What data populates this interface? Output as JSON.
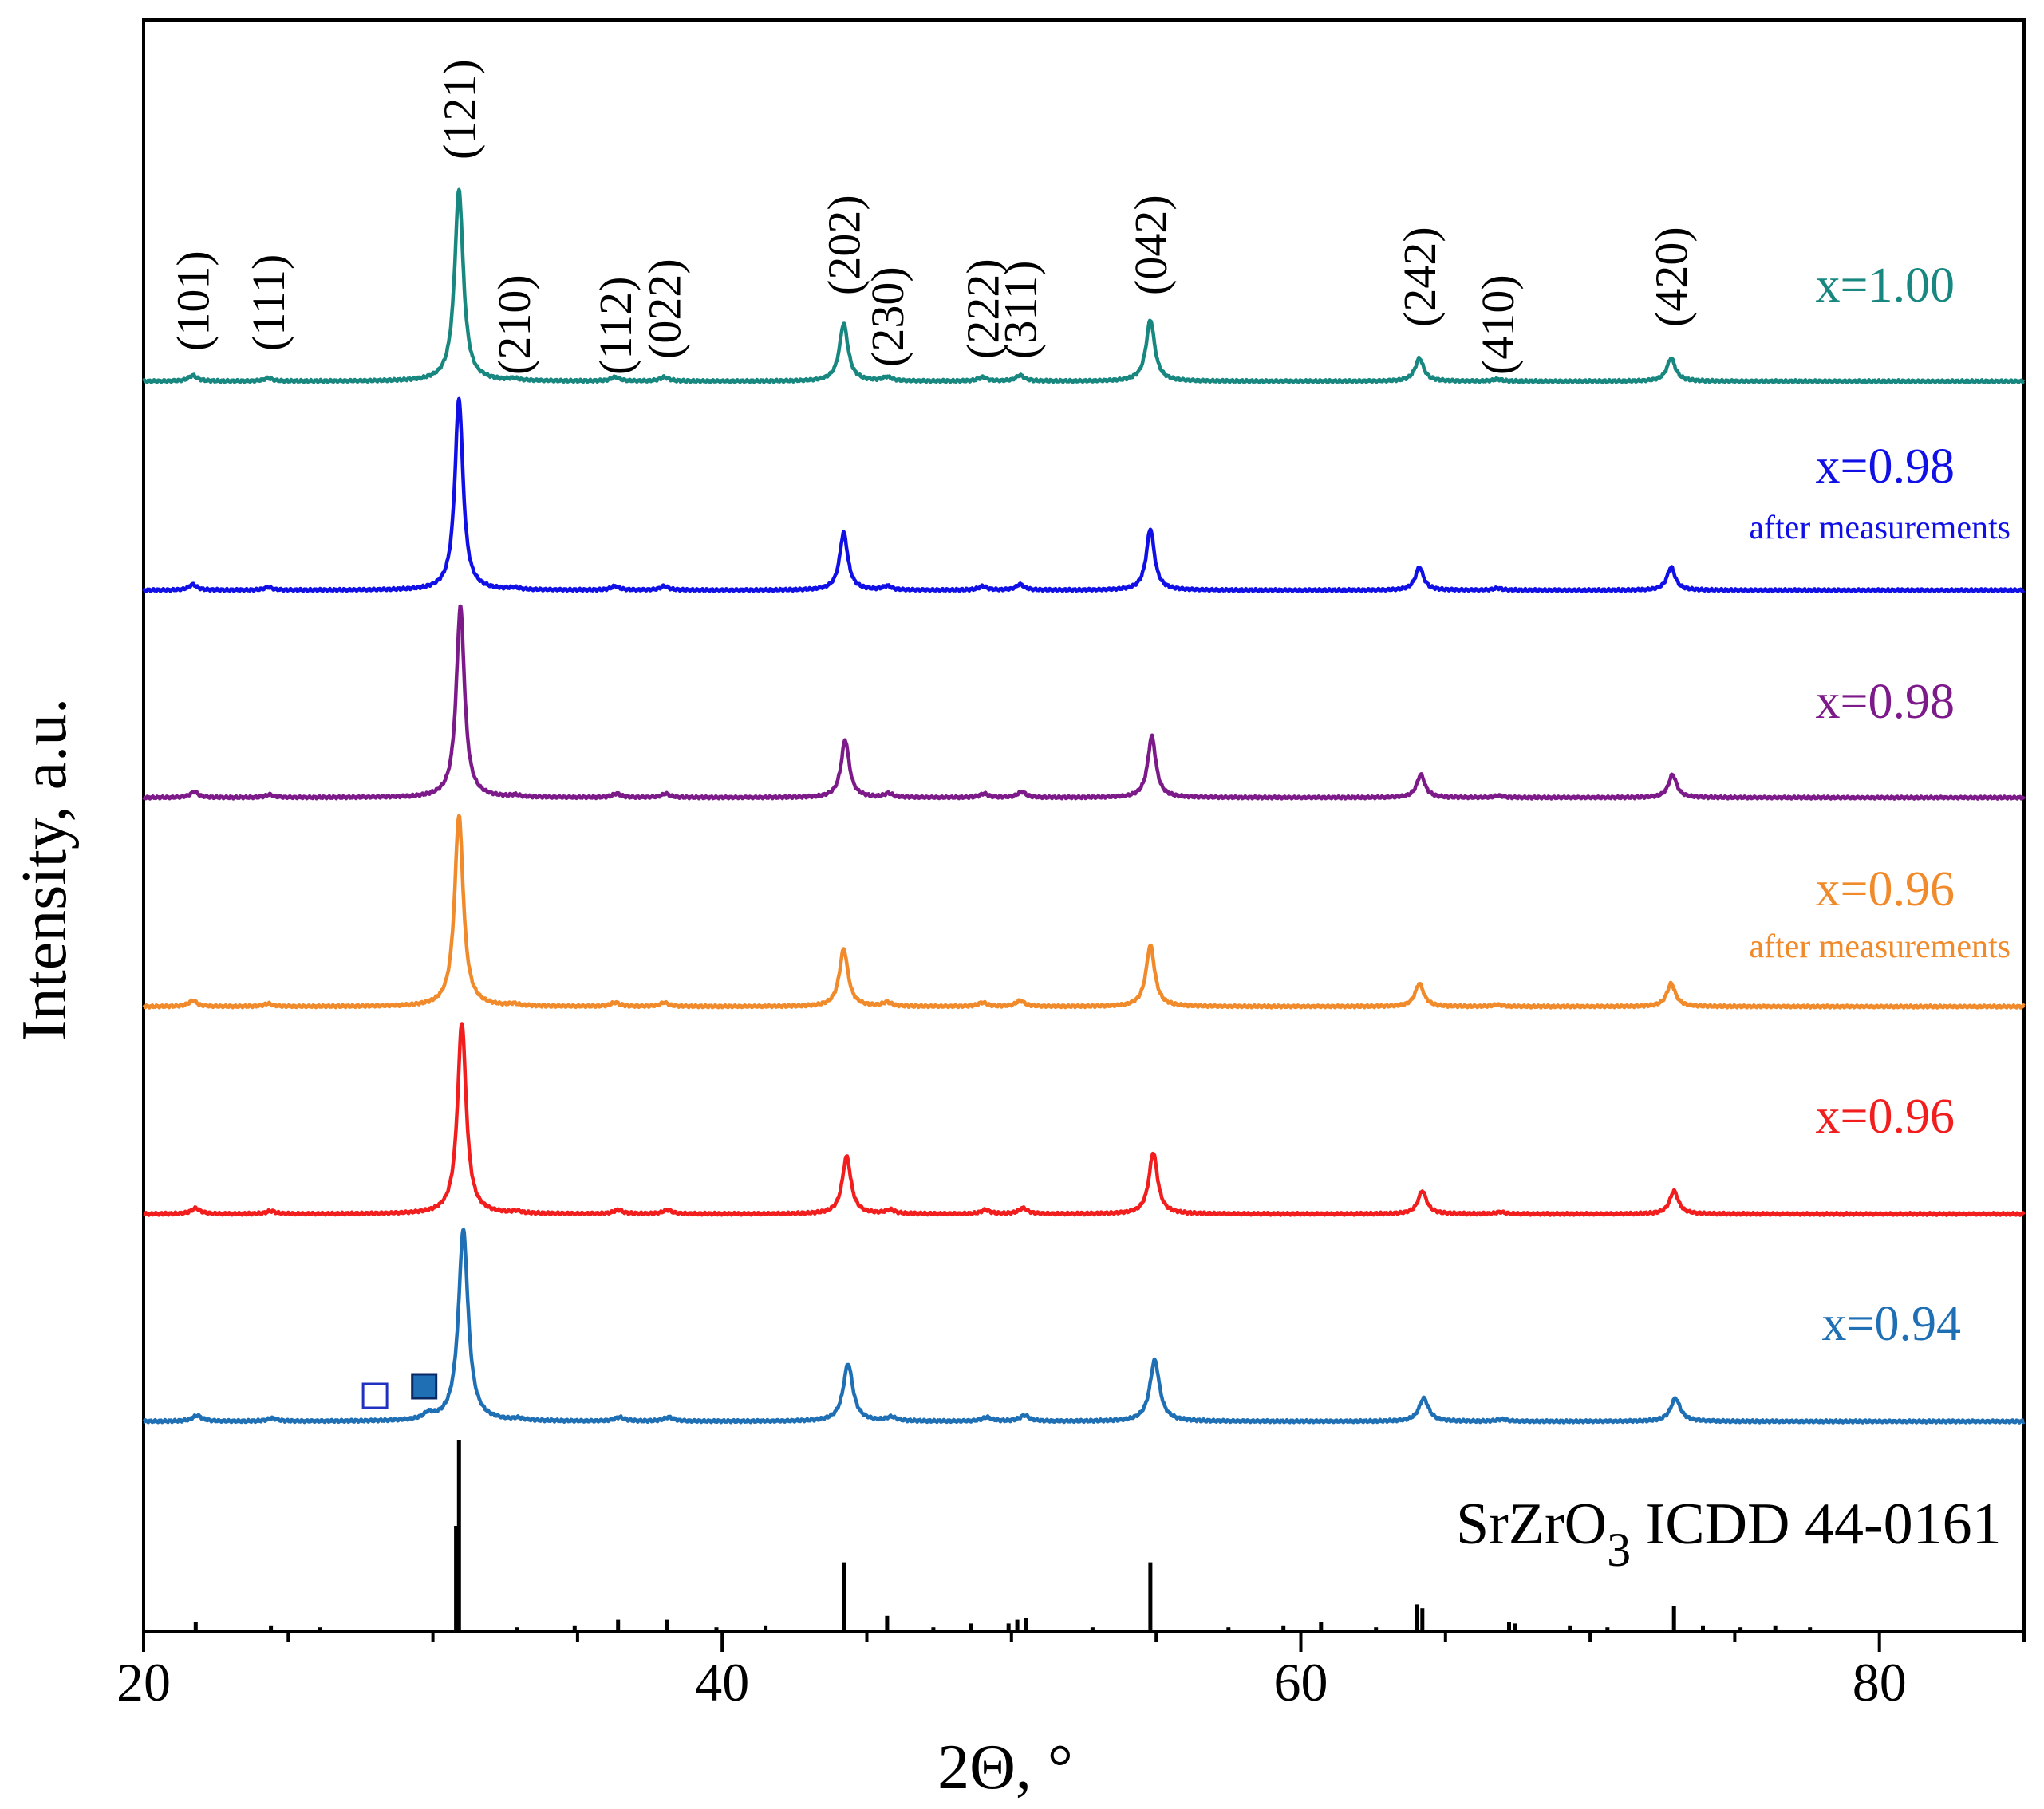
{
  "chart_data": {
    "type": "line",
    "title": "",
    "xlabel": "2Θ, °",
    "ylabel": "Intensity, a.u.",
    "xlim": [
      20,
      85
    ],
    "x_ticks": [
      20,
      40,
      60,
      80
    ],
    "x_tick_labels": [
      "20",
      "40",
      "60",
      "80"
    ],
    "grid": false,
    "plot_kind": "stacked XRD patterns",
    "peaks": [
      {
        "hkl": "(101)",
        "two_theta": 21.7,
        "rel": 0.03
      },
      {
        "hkl": "(111)",
        "two_theta": 24.3,
        "rel": 0.015
      },
      {
        "hkl": "(121)",
        "two_theta": 30.9,
        "rel": 1.0
      },
      {
        "hkl": "(210)",
        "two_theta": 32.8,
        "rel": 0.01
      },
      {
        "hkl": "(112)",
        "two_theta": 36.3,
        "rel": 0.02
      },
      {
        "hkl": "(022)",
        "two_theta": 38.0,
        "rel": 0.02
      },
      {
        "hkl": "(202)",
        "two_theta": 44.2,
        "rel": 0.3
      },
      {
        "hkl": "(230)",
        "two_theta": 45.7,
        "rel": 0.02
      },
      {
        "hkl": "(222)",
        "two_theta": 49.0,
        "rel": 0.02
      },
      {
        "hkl": "(311)",
        "two_theta": 50.3,
        "rel": 0.03
      },
      {
        "hkl": "(042)",
        "two_theta": 54.8,
        "rel": 0.32
      },
      {
        "hkl": "(242)",
        "two_theta": 64.1,
        "rel": 0.12
      },
      {
        "hkl": "(410)",
        "two_theta": 66.8,
        "rel": 0.01
      },
      {
        "hkl": "(420)",
        "two_theta": 72.8,
        "rel": 0.12
      }
    ],
    "series": [
      {
        "name": "x=1.00",
        "color": "#17877f",
        "peak_scale": 1.0,
        "shift": 0.0,
        "width": 0.18,
        "extra_peaks": []
      },
      {
        "name": "x=0.98",
        "subtitle": "after measurements",
        "color": "#1010e6",
        "peak_scale": 1.0,
        "shift": 0.0,
        "width": 0.17,
        "extra_peaks": []
      },
      {
        "name": "x=0.98",
        "color": "#7d1a8a",
        "peak_scale": 1.0,
        "shift": 0.05,
        "width": 0.17,
        "extra_peaks": []
      },
      {
        "name": "x=0.96",
        "subtitle": "after measurements",
        "color": "#f08a2a",
        "peak_scale": 1.0,
        "shift": 0.0,
        "width": 0.18,
        "extra_peaks": []
      },
      {
        "name": "x=0.96",
        "color": "#f21d1d",
        "peak_scale": 1.0,
        "shift": 0.1,
        "width": 0.18,
        "extra_peaks": []
      },
      {
        "name": "x=0.94",
        "color": "#1f6fb5",
        "peak_scale": 1.0,
        "shift": 0.15,
        "width": 0.2,
        "extra_peaks": [
          {
            "two_theta": 29.7,
            "rel": 0.03
          }
        ]
      }
    ],
    "markers": [
      {
        "symbol": "open-square",
        "two_theta": 28.0,
        "series": "x=0.94"
      },
      {
        "symbol": "filled-square",
        "two_theta": 29.7,
        "series": "x=0.94"
      }
    ],
    "reference": {
      "label_main": "SrZrO",
      "label_sub": "3",
      "label_rest": " ICDD 44-0161",
      "lines": [
        {
          "two_theta": 21.8,
          "rel": 0.05
        },
        {
          "two_theta": 24.4,
          "rel": 0.03
        },
        {
          "two_theta": 26.1,
          "rel": 0.02
        },
        {
          "two_theta": 30.9,
          "rel": 1.0
        },
        {
          "two_theta": 30.8,
          "rel": 0.55
        },
        {
          "two_theta": 32.9,
          "rel": 0.02
        },
        {
          "two_theta": 34.9,
          "rel": 0.03
        },
        {
          "two_theta": 36.4,
          "rel": 0.06
        },
        {
          "two_theta": 38.1,
          "rel": 0.06
        },
        {
          "two_theta": 39.8,
          "rel": 0.02
        },
        {
          "two_theta": 41.5,
          "rel": 0.03
        },
        {
          "two_theta": 44.2,
          "rel": 0.36
        },
        {
          "two_theta": 45.7,
          "rel": 0.08
        },
        {
          "two_theta": 47.3,
          "rel": 0.02
        },
        {
          "two_theta": 48.6,
          "rel": 0.04
        },
        {
          "two_theta": 49.9,
          "rel": 0.04
        },
        {
          "two_theta": 50.2,
          "rel": 0.06
        },
        {
          "two_theta": 50.5,
          "rel": 0.07
        },
        {
          "two_theta": 52.8,
          "rel": 0.02
        },
        {
          "two_theta": 54.8,
          "rel": 0.36
        },
        {
          "two_theta": 57.5,
          "rel": 0.02
        },
        {
          "two_theta": 59.4,
          "rel": 0.03
        },
        {
          "two_theta": 60.7,
          "rel": 0.05
        },
        {
          "two_theta": 62.6,
          "rel": 0.02
        },
        {
          "two_theta": 64.0,
          "rel": 0.14
        },
        {
          "two_theta": 64.2,
          "rel": 0.12
        },
        {
          "two_theta": 67.2,
          "rel": 0.05
        },
        {
          "two_theta": 67.4,
          "rel": 0.04
        },
        {
          "two_theta": 69.3,
          "rel": 0.03
        },
        {
          "two_theta": 70.6,
          "rel": 0.02
        },
        {
          "two_theta": 72.9,
          "rel": 0.13
        },
        {
          "two_theta": 73.9,
          "rel": 0.03
        },
        {
          "two_theta": 75.2,
          "rel": 0.02
        },
        {
          "two_theta": 76.4,
          "rel": 0.03
        },
        {
          "two_theta": 77.6,
          "rel": 0.02
        }
      ]
    }
  }
}
